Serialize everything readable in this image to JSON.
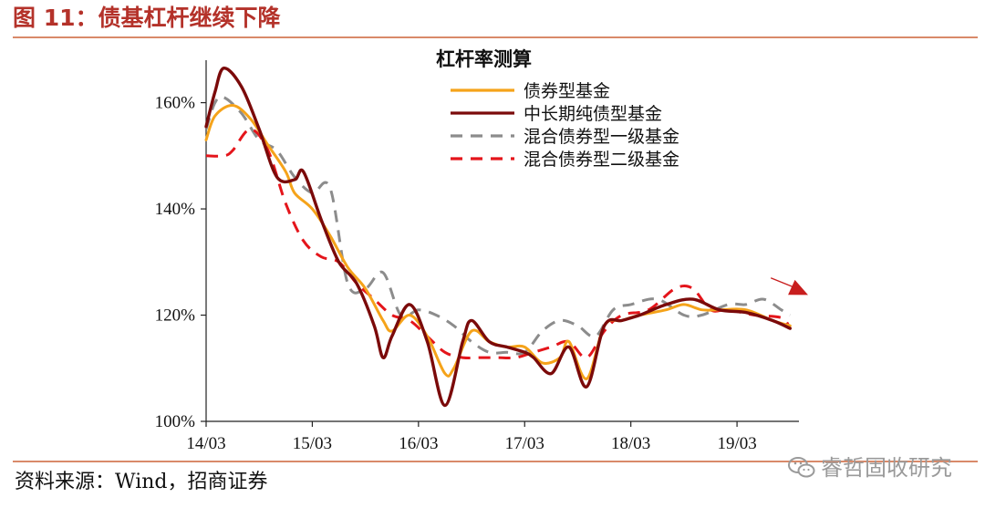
{
  "figure": {
    "title": "图 11：债基杠杆继续下降",
    "source": "资料来源：Wind，招商证券",
    "watermark": "睿哲固收研究"
  },
  "colors": {
    "title": "#b4322a",
    "rule": "#d98a6a",
    "series": [
      "#f5a31a",
      "#7b0a0a",
      "#8c8c8c",
      "#e4151b"
    ],
    "arrow": "#c81e1e"
  },
  "chart_data": {
    "type": "line",
    "title": "杠杆率测算",
    "xlabel": "",
    "ylabel": "",
    "x_ticks": [
      "14/03",
      "15/03",
      "16/03",
      "17/03",
      "18/03",
      "19/03"
    ],
    "y_ticks": [
      "100%",
      "120%",
      "140%",
      "160%"
    ],
    "xlim": [
      "2014-03",
      "2019-10"
    ],
    "ylim": [
      100,
      168
    ],
    "grid": false,
    "legend_position": "top-right",
    "annotations": [
      {
        "type": "arrow",
        "meaning": "downward trend",
        "from": [
          "2019-06",
          1.27
        ],
        "to": [
          "2019-10",
          1.238
        ]
      }
    ],
    "series": [
      {
        "name": "债券型基金",
        "style": "solid",
        "points": [
          [
            "2014-03",
            153
          ],
          [
            "2014-04",
            157.5
          ],
          [
            "2014-06",
            159.5
          ],
          [
            "2014-08",
            157
          ],
          [
            "2014-10",
            152
          ],
          [
            "2014-12",
            147
          ],
          [
            "2015-01",
            143
          ],
          [
            "2015-03",
            140
          ],
          [
            "2015-05",
            135
          ],
          [
            "2015-07",
            129
          ],
          [
            "2015-09",
            125
          ],
          [
            "2015-11",
            119
          ],
          [
            "2015-12",
            117
          ],
          [
            "2016-02",
            120
          ],
          [
            "2016-04",
            116
          ],
          [
            "2016-06",
            109
          ],
          [
            "2016-07",
            110
          ],
          [
            "2016-09",
            117
          ],
          [
            "2016-11",
            115
          ],
          [
            "2017-01",
            114
          ],
          [
            "2017-03",
            114
          ],
          [
            "2017-05",
            111
          ],
          [
            "2017-07",
            112
          ],
          [
            "2017-08",
            115
          ],
          [
            "2017-10",
            108
          ],
          [
            "2017-12",
            118
          ],
          [
            "2018-02",
            119
          ],
          [
            "2018-04",
            120
          ],
          [
            "2018-07",
            121
          ],
          [
            "2018-09",
            122
          ],
          [
            "2018-11",
            121
          ],
          [
            "2019-01",
            121
          ],
          [
            "2019-04",
            121
          ],
          [
            "2019-07",
            119
          ],
          [
            "2019-09",
            118
          ]
        ]
      },
      {
        "name": "中长期纯债型基金",
        "style": "solid",
        "points": [
          [
            "2014-03",
            155.5
          ],
          [
            "2014-04",
            162
          ],
          [
            "2014-05",
            166.5
          ],
          [
            "2014-07",
            163
          ],
          [
            "2014-09",
            155
          ],
          [
            "2014-11",
            146
          ],
          [
            "2015-01",
            145.5
          ],
          [
            "2015-02",
            147
          ],
          [
            "2015-04",
            138
          ],
          [
            "2015-06",
            130
          ],
          [
            "2015-08",
            126
          ],
          [
            "2015-10",
            118
          ],
          [
            "2015-11",
            112
          ],
          [
            "2015-12",
            116
          ],
          [
            "2016-02",
            122
          ],
          [
            "2016-04",
            115
          ],
          [
            "2016-06",
            103
          ],
          [
            "2016-08",
            115
          ],
          [
            "2016-09",
            119
          ],
          [
            "2016-11",
            115
          ],
          [
            "2017-01",
            114
          ],
          [
            "2017-03",
            113
          ],
          [
            "2017-04",
            112
          ],
          [
            "2017-06",
            109
          ],
          [
            "2017-08",
            114
          ],
          [
            "2017-10",
            106.5
          ],
          [
            "2017-12",
            118
          ],
          [
            "2018-02",
            119
          ],
          [
            "2018-04",
            120
          ],
          [
            "2018-07",
            122
          ],
          [
            "2018-10",
            123
          ],
          [
            "2019-01",
            121
          ],
          [
            "2019-04",
            120.5
          ],
          [
            "2019-07",
            119
          ],
          [
            "2019-09",
            117.5
          ]
        ]
      },
      {
        "name": "混合债券型一级基金",
        "style": "dashed",
        "points": [
          [
            "2014-03",
            155
          ],
          [
            "2014-04",
            160
          ],
          [
            "2014-05",
            161
          ],
          [
            "2014-07",
            158
          ],
          [
            "2014-09",
            153
          ],
          [
            "2014-11",
            151
          ],
          [
            "2015-01",
            146
          ],
          [
            "2015-03",
            143
          ],
          [
            "2015-05",
            144
          ],
          [
            "2015-07",
            126
          ],
          [
            "2015-09",
            125
          ],
          [
            "2015-11",
            128
          ],
          [
            "2016-01",
            120
          ],
          [
            "2016-03",
            121
          ],
          [
            "2016-05",
            120
          ],
          [
            "2016-07",
            118
          ],
          [
            "2016-09",
            115
          ],
          [
            "2016-11",
            113
          ],
          [
            "2017-01",
            113
          ],
          [
            "2017-03",
            113
          ],
          [
            "2017-05",
            117
          ],
          [
            "2017-07",
            119
          ],
          [
            "2017-09",
            118
          ],
          [
            "2017-11",
            116
          ],
          [
            "2018-01",
            121
          ],
          [
            "2018-03",
            122
          ],
          [
            "2018-06",
            123
          ],
          [
            "2018-09",
            120
          ],
          [
            "2018-11",
            120
          ],
          [
            "2019-02",
            122
          ],
          [
            "2019-04",
            122
          ],
          [
            "2019-06",
            123
          ],
          [
            "2019-08",
            121
          ],
          [
            "2019-09",
            120
          ]
        ]
      },
      {
        "name": "混合债券型二级基金",
        "style": "dashed",
        "points": [
          [
            "2014-03",
            150
          ],
          [
            "2014-05",
            150
          ],
          [
            "2014-06",
            151
          ],
          [
            "2014-08",
            155
          ],
          [
            "2014-10",
            151
          ],
          [
            "2014-12",
            141
          ],
          [
            "2015-02",
            134
          ],
          [
            "2015-04",
            131
          ],
          [
            "2015-06",
            130
          ],
          [
            "2015-08",
            126
          ],
          [
            "2015-10",
            123
          ],
          [
            "2015-12",
            120
          ],
          [
            "2016-02",
            119
          ],
          [
            "2016-04",
            116
          ],
          [
            "2016-06",
            113
          ],
          [
            "2016-08",
            112
          ],
          [
            "2016-10",
            112
          ],
          [
            "2016-12",
            112
          ],
          [
            "2017-02",
            112
          ],
          [
            "2017-04",
            113
          ],
          [
            "2017-06",
            114
          ],
          [
            "2017-08",
            115
          ],
          [
            "2017-10",
            112
          ],
          [
            "2017-12",
            117
          ],
          [
            "2018-02",
            120
          ],
          [
            "2018-05",
            121
          ],
          [
            "2018-08",
            125
          ],
          [
            "2018-10",
            125
          ],
          [
            "2018-12",
            121
          ],
          [
            "2019-02",
            121
          ],
          [
            "2019-05",
            120
          ],
          [
            "2019-08",
            119.5
          ],
          [
            "2019-09",
            117.5
          ]
        ]
      }
    ]
  }
}
